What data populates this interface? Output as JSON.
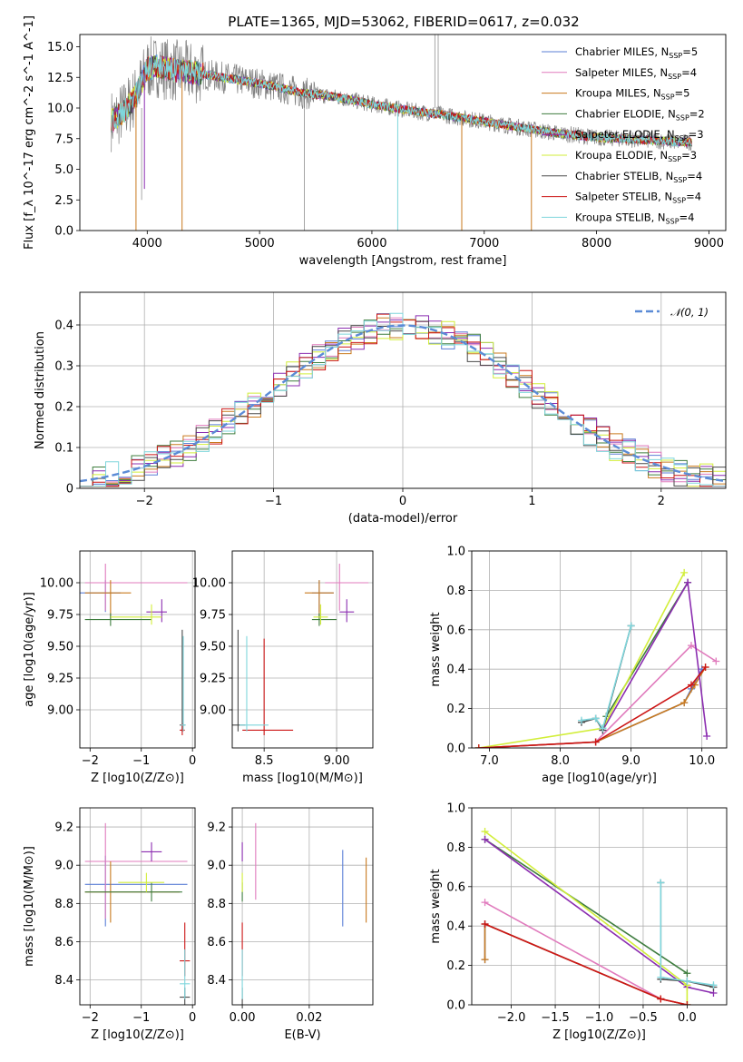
{
  "figure": {
    "title": "PLATE=1365, MJD=53062, FIBERID=0617, z=0.032"
  },
  "models": [
    {
      "name": "Chabrier MILES",
      "nssp": "5",
      "color": "#5b7fd6"
    },
    {
      "name": "Salpeter MILES",
      "nssp": "4",
      "color": "#e07bbd"
    },
    {
      "name": "Kroupa MILES",
      "nssp": "5",
      "color": "#c97a1e"
    },
    {
      "name": "Chabrier ELODIE",
      "nssp": "2",
      "color": "#3f7d3f"
    },
    {
      "name": "Salpeter ELODIE",
      "nssp": "3",
      "color": "#8b2db0"
    },
    {
      "name": "Kroupa ELODIE",
      "nssp": "3",
      "color": "#d2ee3a"
    },
    {
      "name": "Chabrier STELIB",
      "nssp": "4",
      "color": "#4a4a4a"
    },
    {
      "name": "Salpeter STELIB",
      "nssp": "4",
      "color": "#cc1515"
    },
    {
      "name": "Kroupa STELIB",
      "nssp": "4",
      "color": "#7fd6dc"
    }
  ],
  "chart_data": [
    {
      "id": "spectrum",
      "type": "line",
      "title": "PLATE=1365, MJD=53062, FIBERID=0617, z=0.032",
      "xlabel": "wavelength [Angstrom, rest frame]",
      "ylabel": "Flux [f_λ 10^-17 erg cm^-2 s^-1 A^-1]",
      "xlim": [
        3400,
        9150
      ],
      "ylim": [
        0,
        16
      ],
      "xticks": [
        4000,
        5000,
        6000,
        7000,
        8000,
        9000
      ],
      "yticks": [
        0.0,
        2.5,
        5.0,
        7.5,
        10.0,
        12.5,
        15.0
      ],
      "data_color": "#808080",
      "data_profile": {
        "x": [
          3700,
          3800,
          3900,
          4000,
          4100,
          4200,
          4400,
          4600,
          4800,
          5000,
          5200,
          5400,
          5600,
          5800,
          6000,
          6200,
          6400,
          6600,
          6800,
          7000,
          7200,
          7400,
          7600,
          7800,
          8000,
          8200,
          8400,
          8600,
          8800
        ],
        "y": [
          9.0,
          9.8,
          11.0,
          13.2,
          13.4,
          13.1,
          12.9,
          12.6,
          12.3,
          12.0,
          11.6,
          11.2,
          11.0,
          10.7,
          10.3,
          10.0,
          9.7,
          9.5,
          9.2,
          8.9,
          8.6,
          8.3,
          8.0,
          7.8,
          7.6,
          7.5,
          7.4,
          7.3,
          7.2
        ]
      },
      "legend_loc": "upper right",
      "legend": [
        "Chabrier MILES, N_SSP=5",
        "Salpeter MILES, N_SSP=4",
        "Kroupa MILES, N_SSP=5",
        "Chabrier ELODIE, N_SSP=2",
        "Salpeter ELODIE, N_SSP=3",
        "Kroupa ELODIE, N_SSP=3",
        "Chabrier STELIB, N_SSP=4",
        "Salpeter STELIB, N_SSP=4",
        "Kroupa STELIB, N_SSP=4"
      ],
      "grid": false
    },
    {
      "id": "residuals",
      "type": "bar",
      "xlabel": "(data-model)/error",
      "ylabel": "Normed distribution",
      "xlim": [
        -2.5,
        2.5
      ],
      "ylim": [
        0,
        0.48
      ],
      "xticks": [
        -2,
        -1,
        0,
        1,
        2
      ],
      "yticks": [
        0.0,
        0.1,
        0.2,
        0.3,
        0.4
      ],
      "bin_width": 0.1,
      "gaussian": {
        "mean": 0,
        "sigma": 1,
        "label": "𝒩(0, 1)",
        "color": "#5b8bd6"
      },
      "legend_loc": "upper right",
      "grid": true
    },
    {
      "id": "age-vs-Z",
      "type": "scatter",
      "xlabel": "Z [log10(Z/Z⊙)]",
      "ylabel": "age [log10(age/yr)]",
      "xlim": [
        -2.2,
        0.05
      ],
      "ylim": [
        8.7,
        10.25
      ],
      "xticks": [
        -2,
        -1,
        0
      ],
      "yticks": [
        9.0,
        9.25,
        9.5,
        9.75,
        10.0
      ],
      "points": [
        {
          "model": 0,
          "x": -1.7,
          "y": 9.92,
          "xerr": [
            0.95,
            0.3
          ],
          "yerr": [
            0.15,
            0.1
          ]
        },
        {
          "model": 1,
          "x": -1.7,
          "y": 10.0,
          "xerr": [
            0.4,
            1.6
          ],
          "yerr": [
            0.22,
            0.15
          ]
        },
        {
          "model": 2,
          "x": -1.6,
          "y": 9.92,
          "xerr": [
            0.5,
            0.4
          ],
          "yerr": [
            0.2,
            0.1
          ]
        },
        {
          "model": 3,
          "x": -1.6,
          "y": 9.71,
          "xerr": [
            0.5,
            0.8
          ],
          "yerr": [
            0.05,
            0.05
          ]
        },
        {
          "model": 4,
          "x": -0.6,
          "y": 9.77,
          "xerr": [
            0.3,
            0.1
          ],
          "yerr": [
            0.08,
            0.1
          ]
        },
        {
          "model": 5,
          "x": -0.8,
          "y": 9.73,
          "xerr": [
            0.8,
            0.2
          ],
          "yerr": [
            0.06,
            0.1
          ]
        },
        {
          "model": 6,
          "x": -0.2,
          "y": 8.88,
          "xerr": [
            0.05,
            0.05
          ],
          "yerr": [
            0.05,
            0.75
          ]
        },
        {
          "model": 7,
          "x": -0.2,
          "y": 8.84,
          "xerr": [
            0.05,
            0.05
          ],
          "yerr": [
            0.04,
            0.05
          ]
        },
        {
          "model": 8,
          "x": -0.18,
          "y": 8.88,
          "xerr": [
            0.05,
            0.05
          ],
          "yerr": [
            0.05,
            0.7
          ]
        }
      ],
      "grid": true
    },
    {
      "id": "age-vs-mass",
      "type": "scatter",
      "xlabel": "mass [log10(M/M⊙)]",
      "ylabel": "",
      "xlim": [
        8.28,
        9.25
      ],
      "ylim": [
        8.7,
        10.25
      ],
      "xticks": [
        8.5,
        9.0
      ],
      "yticks": [
        9.0,
        9.25,
        9.5,
        9.75,
        10.0
      ],
      "points": [
        {
          "model": 0,
          "x": 8.88,
          "y": 9.92,
          "xerr": [
            0.05,
            0.1
          ],
          "yerr": [
            0.15,
            0.1
          ]
        },
        {
          "model": 1,
          "x": 9.02,
          "y": 10.0,
          "xerr": [
            0.1,
            0.2
          ],
          "yerr": [
            0.22,
            0.15
          ]
        },
        {
          "model": 2,
          "x": 8.88,
          "y": 9.92,
          "xerr": [
            0.1,
            0.1
          ],
          "yerr": [
            0.2,
            0.1
          ]
        },
        {
          "model": 3,
          "x": 8.88,
          "y": 9.71,
          "xerr": [
            0.05,
            0.12
          ],
          "yerr": [
            0.05,
            0.05
          ]
        },
        {
          "model": 4,
          "x": 9.07,
          "y": 9.77,
          "xerr": [
            0.05,
            0.05
          ],
          "yerr": [
            0.08,
            0.1
          ]
        },
        {
          "model": 5,
          "x": 8.89,
          "y": 9.73,
          "xerr": [
            0.05,
            0.05
          ],
          "yerr": [
            0.06,
            0.1
          ]
        },
        {
          "model": 6,
          "x": 8.32,
          "y": 8.88,
          "xerr": [
            0.05,
            0.05
          ],
          "yerr": [
            0.05,
            0.75
          ]
        },
        {
          "model": 7,
          "x": 8.5,
          "y": 8.84,
          "xerr": [
            0.15,
            0.2
          ],
          "yerr": [
            0.04,
            0.72
          ]
        },
        {
          "model": 8,
          "x": 8.38,
          "y": 8.88,
          "xerr": [
            0.05,
            0.15
          ],
          "yerr": [
            0.05,
            0.7
          ]
        }
      ],
      "grid": true
    },
    {
      "id": "massweight-vs-age",
      "type": "line",
      "xlabel": "age [log10(age/yr)]",
      "ylabel": "mass weight",
      "xlim": [
        6.75,
        10.35
      ],
      "ylim": [
        0,
        1.0
      ],
      "xticks": [
        7,
        8,
        9,
        10
      ],
      "yticks": [
        0.0,
        0.2,
        0.4,
        0.6,
        0.8,
        1.0
      ],
      "series": [
        {
          "model": 0,
          "x": [
            6.85,
            8.5,
            9.75,
            9.85,
            10.0
          ],
          "y": [
            0.0,
            0.03,
            0.23,
            0.3,
            0.4
          ]
        },
        {
          "model": 1,
          "x": [
            6.85,
            8.5,
            9.85,
            10.2
          ],
          "y": [
            0.0,
            0.03,
            0.52,
            0.44
          ]
        },
        {
          "model": 2,
          "x": [
            6.85,
            8.5,
            9.75,
            9.9,
            10.05
          ],
          "y": [
            0.0,
            0.03,
            0.23,
            0.32,
            0.41
          ]
        },
        {
          "model": 3,
          "x": [
            8.65,
            9.8
          ],
          "y": [
            0.16,
            0.84
          ]
        },
        {
          "model": 4,
          "x": [
            8.6,
            9.8,
            10.07
          ],
          "y": [
            0.09,
            0.84,
            0.06
          ]
        },
        {
          "model": 5,
          "x": [
            6.85,
            8.6,
            9.75
          ],
          "y": [
            0.0,
            0.1,
            0.89
          ]
        },
        {
          "model": 6,
          "x": [
            8.3,
            8.5,
            8.6,
            9.0
          ],
          "y": [
            0.13,
            0.15,
            0.09,
            0.62
          ]
        },
        {
          "model": 7,
          "x": [
            6.85,
            8.5,
            9.85,
            10.05
          ],
          "y": [
            0.0,
            0.03,
            0.32,
            0.41
          ]
        },
        {
          "model": 8,
          "x": [
            8.3,
            8.5,
            8.6,
            9.0
          ],
          "y": [
            0.14,
            0.15,
            0.1,
            0.62
          ]
        }
      ],
      "grid": true
    },
    {
      "id": "mass-vs-Z",
      "type": "scatter",
      "xlabel": "Z [log10(Z/Z⊙)]",
      "ylabel": "mass [log10(M/M⊙)]",
      "xlim": [
        -2.2,
        0.05
      ],
      "ylim": [
        8.27,
        9.3
      ],
      "xticks": [
        -2,
        -1,
        0
      ],
      "yticks": [
        8.4,
        8.6,
        8.8,
        9.0,
        9.2
      ],
      "points": [
        {
          "model": 0,
          "x": -1.7,
          "y": 8.9,
          "xerr": [
            0.4,
            1.6
          ],
          "yerr": [
            0.22,
            0.15
          ]
        },
        {
          "model": 1,
          "x": -1.7,
          "y": 9.02,
          "xerr": [
            0.4,
            1.6
          ],
          "yerr": [
            0.3,
            0.2
          ]
        },
        {
          "model": 2,
          "x": -1.6,
          "y": 8.86,
          "xerr": [
            0.5,
            1.35
          ],
          "yerr": [
            0.16,
            0.16
          ]
        },
        {
          "model": 3,
          "x": -0.8,
          "y": 8.86,
          "xerr": [
            1.3,
            0.6
          ],
          "yerr": [
            0.05,
            0.05
          ]
        },
        {
          "model": 4,
          "x": -0.8,
          "y": 9.07,
          "xerr": [
            0.2,
            0.2
          ],
          "yerr": [
            0.05,
            0.05
          ]
        },
        {
          "model": 5,
          "x": -0.9,
          "y": 8.91,
          "xerr": [
            0.55,
            0.35
          ],
          "yerr": [
            0.05,
            0.05
          ]
        },
        {
          "model": 6,
          "x": -0.15,
          "y": 8.31,
          "xerr": [
            0.1,
            0.1
          ],
          "yerr": [
            0.05,
            0.05
          ]
        },
        {
          "model": 7,
          "x": -0.15,
          "y": 8.5,
          "xerr": [
            0.1,
            0.1
          ],
          "yerr": [
            0.08,
            0.2
          ]
        },
        {
          "model": 8,
          "x": -0.15,
          "y": 8.38,
          "xerr": [
            0.1,
            0.1
          ],
          "yerr": [
            0.08,
            0.18
          ]
        }
      ],
      "grid": true
    },
    {
      "id": "mass-vs-EBV",
      "type": "scatter",
      "xlabel": "E(B-V)",
      "ylabel": "",
      "xlim": [
        -0.003,
        0.039
      ],
      "ylim": [
        8.27,
        9.3
      ],
      "xticks": [
        0.0,
        0.02
      ],
      "yticks": [
        8.4,
        8.6,
        8.8,
        9.0,
        9.2
      ],
      "points": [
        {
          "model": 0,
          "x": 0.03,
          "y": 8.9,
          "xerr": [
            0,
            0
          ],
          "yerr": [
            0.22,
            0.18
          ]
        },
        {
          "model": 1,
          "x": 0.004,
          "y": 9.02,
          "xerr": [
            0,
            0
          ],
          "yerr": [
            0.2,
            0.2
          ]
        },
        {
          "model": 2,
          "x": 0.037,
          "y": 8.86,
          "xerr": [
            0,
            0
          ],
          "yerr": [
            0.16,
            0.18
          ]
        },
        {
          "model": 3,
          "x": 0.0,
          "y": 8.86,
          "xerr": [
            0,
            0
          ],
          "yerr": [
            0.05,
            0.05
          ]
        },
        {
          "model": 4,
          "x": 0.0,
          "y": 9.07,
          "xerr": [
            0,
            0
          ],
          "yerr": [
            0.05,
            0.05
          ]
        },
        {
          "model": 5,
          "x": 0.0,
          "y": 8.91,
          "xerr": [
            0,
            0
          ],
          "yerr": [
            0.05,
            0.05
          ]
        },
        {
          "model": 6,
          "x": 0.0,
          "y": 8.31,
          "xerr": [
            0,
            0
          ],
          "yerr": [
            0.05,
            0.05
          ]
        },
        {
          "model": 7,
          "x": 0.0,
          "y": 8.5,
          "xerr": [
            0,
            0
          ],
          "yerr": [
            0.08,
            0.2
          ]
        },
        {
          "model": 8,
          "x": 0.0,
          "y": 8.38,
          "xerr": [
            0,
            0
          ],
          "yerr": [
            0.08,
            0.18
          ]
        }
      ],
      "grid": true
    },
    {
      "id": "massweight-vs-Z",
      "type": "line",
      "xlabel": "Z [log10(Z/Z⊙)]",
      "ylabel": "mass weight",
      "xlim": [
        -2.45,
        0.45
      ],
      "ylim": [
        0,
        1.0
      ],
      "xticks": [
        -2.0,
        -1.5,
        -1.0,
        -0.5,
        0.0
      ],
      "yticks": [
        0.0,
        0.2,
        0.4,
        0.6,
        0.8,
        1.0
      ],
      "series": [
        {
          "model": 0,
          "x": [
            -2.3,
            -2.3,
            -0.3,
            0.0
          ],
          "y": [
            0.23,
            0.41,
            0.03,
            0.0
          ]
        },
        {
          "model": 1,
          "x": [
            -2.3,
            -0.3,
            0.0
          ],
          "y": [
            0.52,
            0.03,
            0.0
          ]
        },
        {
          "model": 2,
          "x": [
            -2.3,
            -2.3,
            -0.3,
            0.0
          ],
          "y": [
            0.23,
            0.41,
            0.03,
            0.0
          ]
        },
        {
          "model": 3,
          "x": [
            -2.3,
            0.0
          ],
          "y": [
            0.84,
            0.16
          ]
        },
        {
          "model": 4,
          "x": [
            -2.3,
            0.0,
            0.3
          ],
          "y": [
            0.84,
            0.09,
            0.06
          ]
        },
        {
          "model": 5,
          "x": [
            -2.3,
            0.0,
            0.0
          ],
          "y": [
            0.88,
            0.1,
            0.0
          ]
        },
        {
          "model": 6,
          "x": [
            -0.3,
            -0.3,
            0.0,
            0.3
          ],
          "y": [
            0.62,
            0.13,
            0.12,
            0.09
          ]
        },
        {
          "model": 7,
          "x": [
            -2.3,
            -0.3,
            0.0
          ],
          "y": [
            0.41,
            0.03,
            0.0
          ]
        },
        {
          "model": 8,
          "x": [
            -0.3,
            -0.3,
            0.0,
            0.3
          ],
          "y": [
            0.62,
            0.14,
            0.12,
            0.1
          ]
        }
      ],
      "grid": true
    }
  ]
}
